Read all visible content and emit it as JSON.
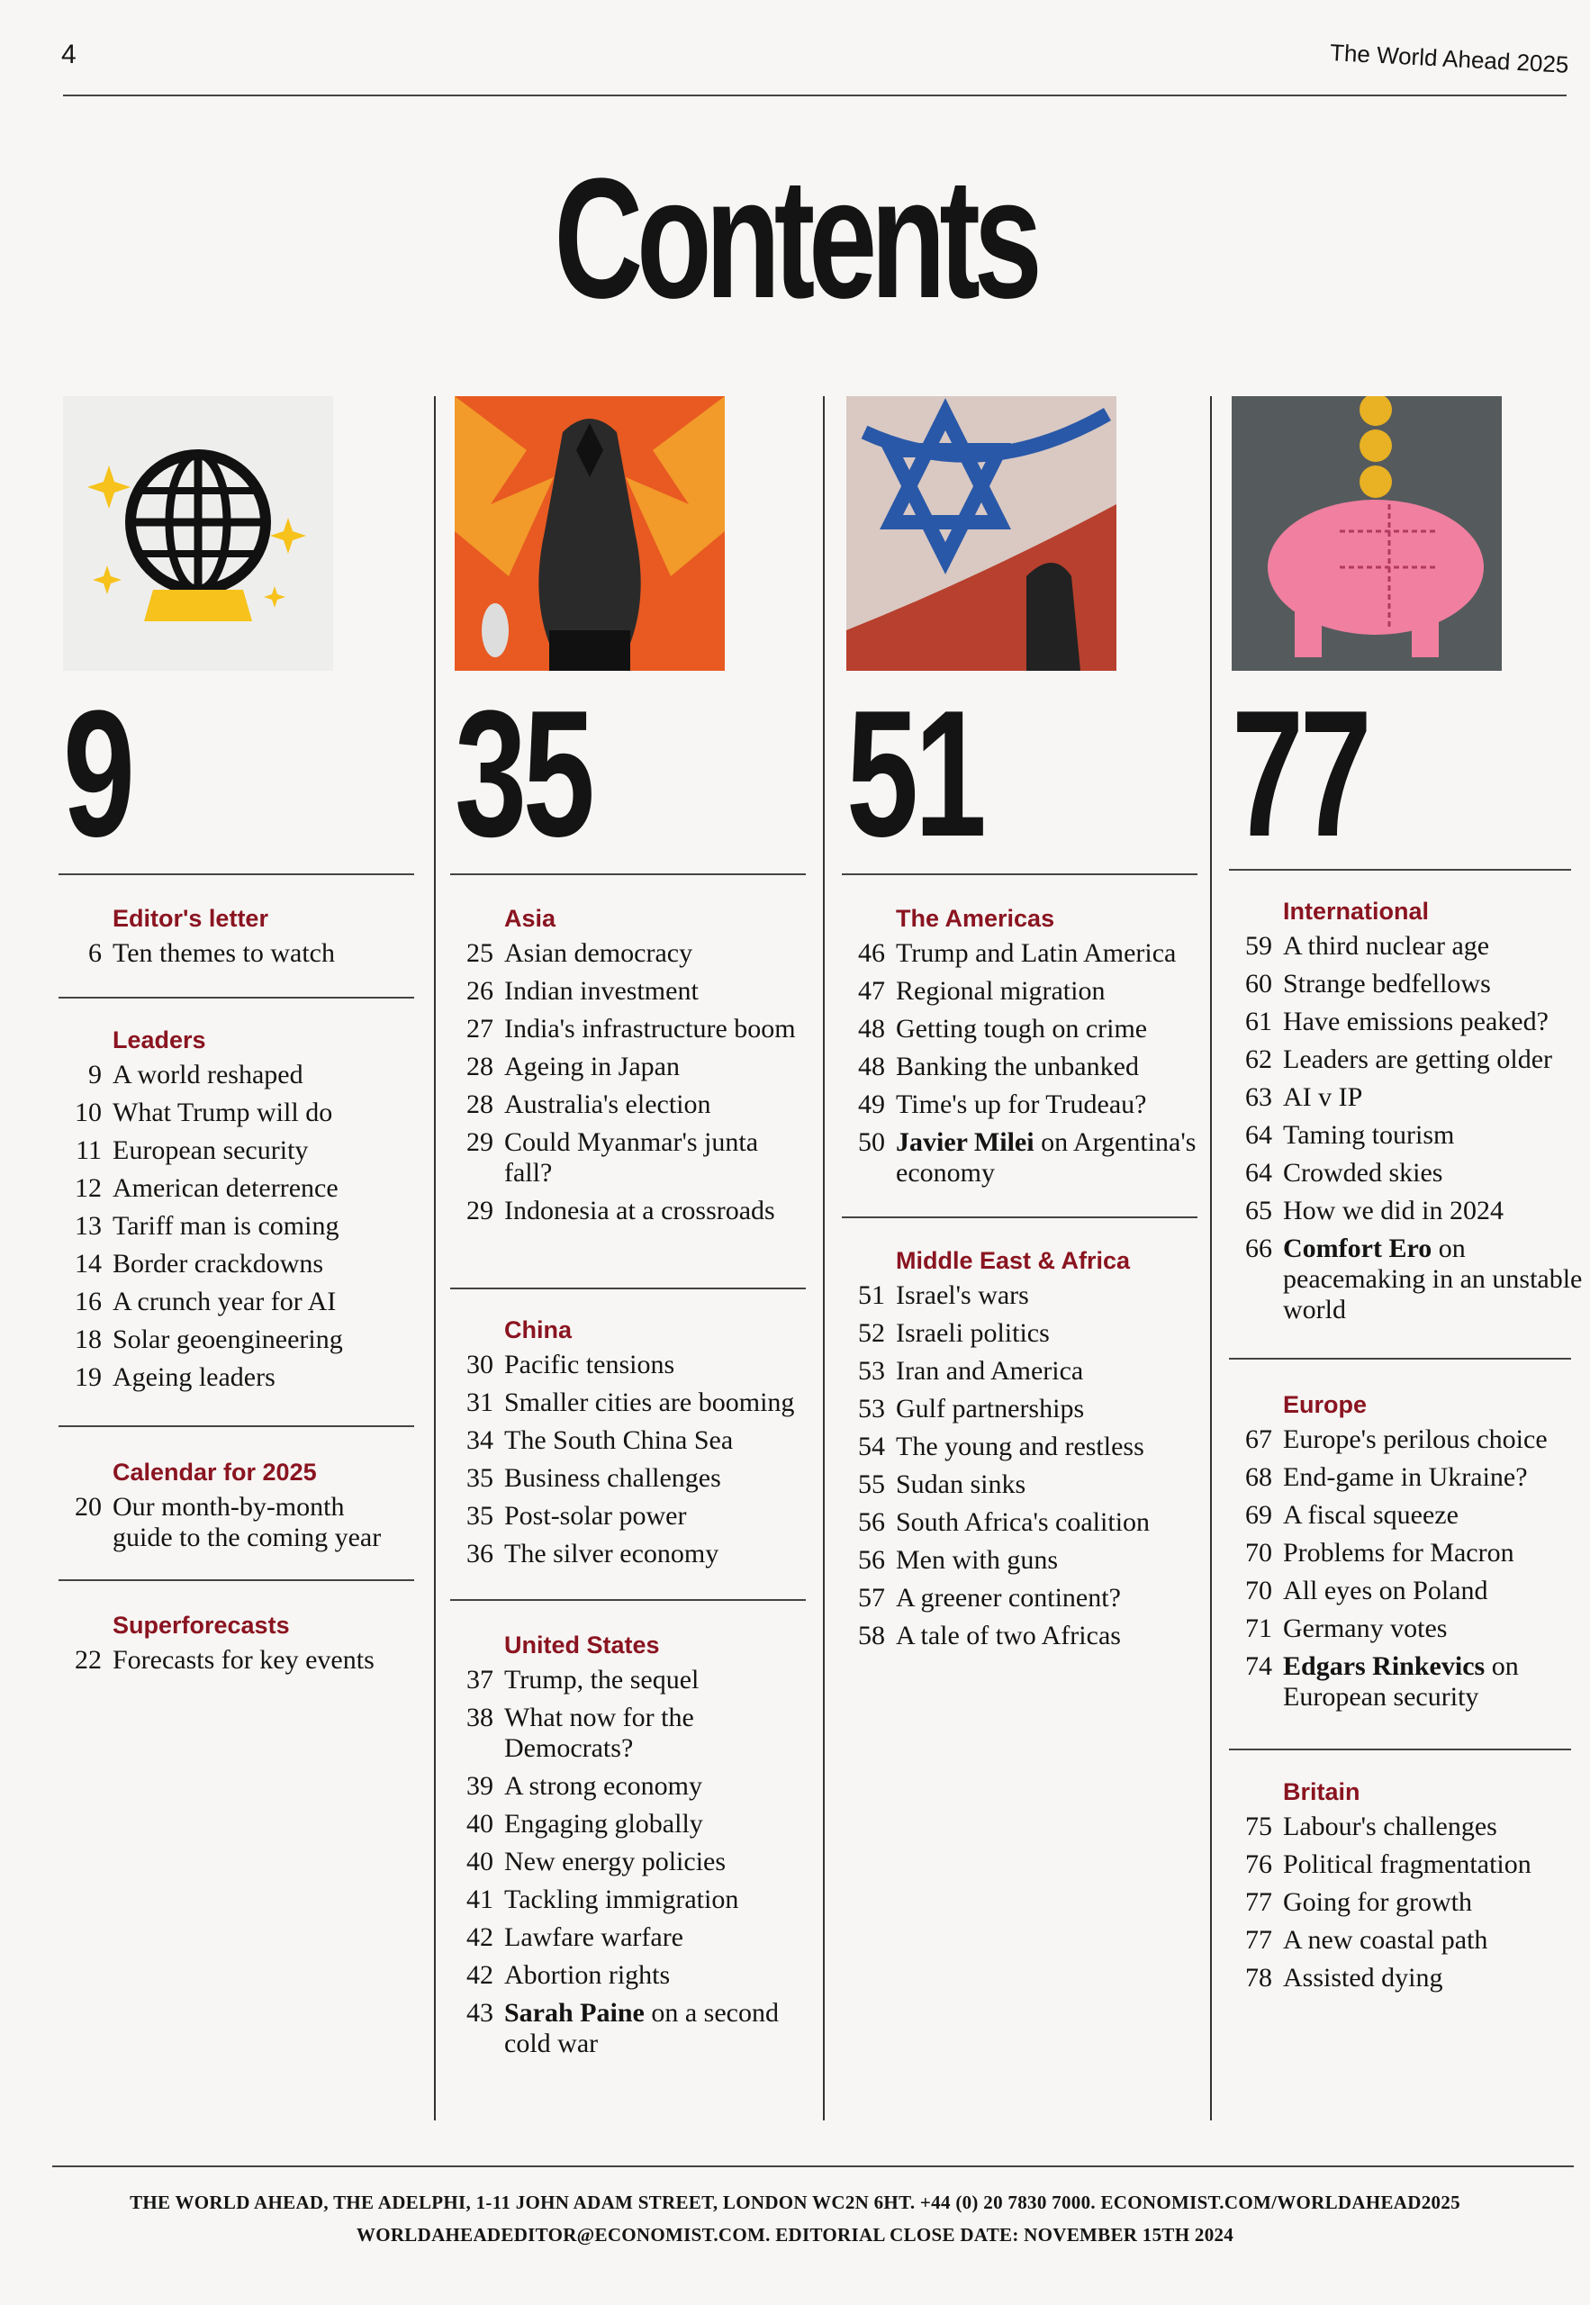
{
  "page_number": "4",
  "running_head": "The World Ahead 2025",
  "title": "Contents",
  "columns": [
    {
      "feature_page": "9",
      "image": "globe-crystal-ball-icon",
      "sections": [
        {
          "heading": "Editor's letter",
          "entries": [
            {
              "page": "6",
              "bold": "",
              "title": "Ten themes to watch"
            }
          ]
        },
        {
          "heading": "Leaders",
          "entries": [
            {
              "page": "9",
              "bold": "",
              "title": "A world reshaped"
            },
            {
              "page": "10",
              "bold": "",
              "title": "What Trump will do"
            },
            {
              "page": "11",
              "bold": "",
              "title": "European security"
            },
            {
              "page": "12",
              "bold": "",
              "title": "American deterrence"
            },
            {
              "page": "13",
              "bold": "",
              "title": "Tariff man is coming"
            },
            {
              "page": "14",
              "bold": "",
              "title": "Border crackdowns"
            },
            {
              "page": "16",
              "bold": "",
              "title": "A crunch year for AI"
            },
            {
              "page": "18",
              "bold": "",
              "title": "Solar geoengineering"
            },
            {
              "page": "19",
              "bold": "",
              "title": "Ageing leaders"
            }
          ]
        },
        {
          "heading": "Calendar for 2025",
          "entries": [
            {
              "page": "20",
              "bold": "",
              "title": "Our month-by-month guide to the coming year"
            }
          ]
        },
        {
          "heading": "Superforecasts",
          "entries": [
            {
              "page": "22",
              "bold": "",
              "title": "Forecasts for key events"
            }
          ]
        }
      ]
    },
    {
      "feature_page": "35",
      "image": "dragon-illustration",
      "sections": [
        {
          "heading": "Asia",
          "entries": [
            {
              "page": "25",
              "bold": "",
              "title": "Asian democracy"
            },
            {
              "page": "26",
              "bold": "",
              "title": "Indian investment"
            },
            {
              "page": "27",
              "bold": "",
              "title": "India's infrastructure boom"
            },
            {
              "page": "28",
              "bold": "",
              "title": "Ageing in Japan"
            },
            {
              "page": "28",
              "bold": "",
              "title": "Australia's election"
            },
            {
              "page": "29",
              "bold": "",
              "title": "Could Myanmar's junta fall?"
            },
            {
              "page": "29",
              "bold": "",
              "title": "Indonesia at a crossroads"
            }
          ]
        },
        {
          "heading": "China",
          "entries": [
            {
              "page": "30",
              "bold": "",
              "title": "Pacific tensions"
            },
            {
              "page": "31",
              "bold": "",
              "title": "Smaller cities are booming"
            },
            {
              "page": "34",
              "bold": "",
              "title": "The South China Sea"
            },
            {
              "page": "35",
              "bold": "",
              "title": "Business challenges"
            },
            {
              "page": "35",
              "bold": "",
              "title": "Post-solar power"
            },
            {
              "page": "36",
              "bold": "",
              "title": "The silver economy"
            }
          ]
        },
        {
          "heading": "United States",
          "entries": [
            {
              "page": "37",
              "bold": "",
              "title": "Trump, the sequel"
            },
            {
              "page": "38",
              "bold": "",
              "title": "What now for the Democrats?"
            },
            {
              "page": "39",
              "bold": "",
              "title": "A strong economy"
            },
            {
              "page": "40",
              "bold": "",
              "title": "Engaging globally"
            },
            {
              "page": "40",
              "bold": "",
              "title": "New energy policies"
            },
            {
              "page": "41",
              "bold": "",
              "title": "Tackling immigration"
            },
            {
              "page": "42",
              "bold": "",
              "title": "Lawfare warfare"
            },
            {
              "page": "42",
              "bold": "",
              "title": "Abortion rights"
            },
            {
              "page": "43",
              "bold": "Sarah Paine",
              "title": " on a second cold war"
            }
          ]
        }
      ]
    },
    {
      "feature_page": "51",
      "image": "israel-flag-photo",
      "sections": [
        {
          "heading": "The Americas",
          "entries": [
            {
              "page": "46",
              "bold": "",
              "title": "Trump and Latin America"
            },
            {
              "page": "47",
              "bold": "",
              "title": "Regional migration"
            },
            {
              "page": "48",
              "bold": "",
              "title": "Getting tough on crime"
            },
            {
              "page": "48",
              "bold": "",
              "title": "Banking the unbanked"
            },
            {
              "page": "49",
              "bold": "",
              "title": "Time's up for Trudeau?"
            },
            {
              "page": "50",
              "bold": "Javier Milei",
              "title": " on Argentina's economy"
            }
          ]
        },
        {
          "heading": "Middle East & Africa",
          "entries": [
            {
              "page": "51",
              "bold": "",
              "title": "Israel's wars"
            },
            {
              "page": "52",
              "bold": "",
              "title": "Israeli politics"
            },
            {
              "page": "53",
              "bold": "",
              "title": "Iran and America"
            },
            {
              "page": "53",
              "bold": "",
              "title": "Gulf partnerships"
            },
            {
              "page": "54",
              "bold": "",
              "title": "The young and restless"
            },
            {
              "page": "55",
              "bold": "",
              "title": "Sudan sinks"
            },
            {
              "page": "56",
              "bold": "",
              "title": "South Africa's coalition"
            },
            {
              "page": "56",
              "bold": "",
              "title": "Men with guns"
            },
            {
              "page": "57",
              "bold": "",
              "title": "A greener continent?"
            },
            {
              "page": "58",
              "bold": "",
              "title": "A tale of two Africas"
            }
          ]
        }
      ]
    },
    {
      "feature_page": "77",
      "image": "piggy-bank-illustration",
      "sections": [
        {
          "heading": "International",
          "entries": [
            {
              "page": "59",
              "bold": "",
              "title": "A third nuclear age"
            },
            {
              "page": "60",
              "bold": "",
              "title": "Strange bedfellows"
            },
            {
              "page": "61",
              "bold": "",
              "title": "Have emissions peaked?"
            },
            {
              "page": "62",
              "bold": "",
              "title": "Leaders are getting older"
            },
            {
              "page": "63",
              "bold": "",
              "title": "AI v IP"
            },
            {
              "page": "64",
              "bold": "",
              "title": "Taming tourism"
            },
            {
              "page": "64",
              "bold": "",
              "title": "Crowded skies"
            },
            {
              "page": "65",
              "bold": "",
              "title": "How we did in 2024"
            },
            {
              "page": "66",
              "bold": "Comfort Ero",
              "title": " on peacemaking in an unstable world"
            }
          ]
        },
        {
          "heading": "Europe",
          "entries": [
            {
              "page": "67",
              "bold": "",
              "title": "Europe's perilous choice"
            },
            {
              "page": "68",
              "bold": "",
              "title": "End-game in Ukraine?"
            },
            {
              "page": "69",
              "bold": "",
              "title": "A fiscal squeeze"
            },
            {
              "page": "70",
              "bold": "",
              "title": "Problems for Macron"
            },
            {
              "page": "70",
              "bold": "",
              "title": "All eyes on Poland"
            },
            {
              "page": "71",
              "bold": "",
              "title": "Germany votes"
            },
            {
              "page": "74",
              "bold": "Edgars Rinkevics",
              "title": " on European security"
            }
          ]
        },
        {
          "heading": "Britain",
          "entries": [
            {
              "page": "75",
              "bold": "",
              "title": "Labour's challenges"
            },
            {
              "page": "76",
              "bold": "",
              "title": "Political fragmentation"
            },
            {
              "page": "77",
              "bold": "",
              "title": "Going for growth"
            },
            {
              "page": "77",
              "bold": "",
              "title": "A new coastal path"
            },
            {
              "page": "78",
              "bold": "",
              "title": "Assisted dying"
            }
          ]
        }
      ]
    }
  ],
  "footer": {
    "line1": "THE WORLD AHEAD, THE ADELPHI, 1-11 JOHN ADAM STREET, LONDON WC2N 6HT. +44 (0) 20 7830 7000. ECONOMIST.COM/WORLDAHEAD2025",
    "line2": "WORLDAHEADEDITOR@ECONOMIST.COM. EDITORIAL CLOSE DATE: NOVEMBER 15TH 2024"
  },
  "colors": {
    "section_heading": "#8a1420",
    "text": "#141414"
  }
}
